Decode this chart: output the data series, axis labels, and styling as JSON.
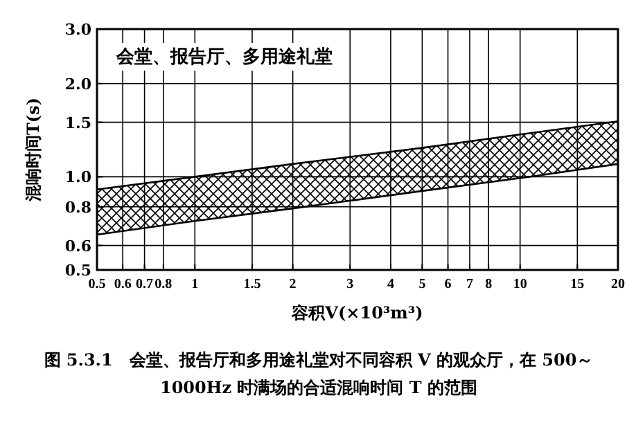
{
  "chart_data": {
    "type": "area",
    "xlabel": "容积V(×10³m³)",
    "ylabel": "混响时间T(s)",
    "annotations": [
      "会堂、报告厅、多用途礼堂",
      "图 5.3.1　会堂、报告厅和多用途礼堂对不同容积 V 的观众厅，在 500～1000Hz 时满场的合适混响时间 T 的范围"
    ],
    "x": [
      0.5,
      1,
      2,
      5,
      10,
      20
    ],
    "series": [
      {
        "type": "line",
        "color": "#000000",
        "values": [
          0.65,
          0.72,
          0.79,
          0.9,
          0.99,
          1.1
        ]
      },
      {
        "color": "#000000",
        "values": [
          0.91,
          1.0,
          1.1,
          1.24,
          1.37,
          1.51
        ]
      }
    ],
    "log": "xy",
    "xlim": [
      0.5,
      20
    ],
    "ylim": [
      0.5,
      3
    ],
    "xticks": [
      0.5,
      0.6,
      0.7,
      0.8,
      1,
      1.5,
      2,
      3,
      4,
      5,
      6,
      7,
      8,
      10,
      15,
      20
    ],
    "yticks": [
      0.5,
      0.6,
      0.8,
      {
        "value": 1,
        "label": "1.0"
      },
      1.5,
      {
        "value": 2,
        "label": "2.0"
      },
      {
        "value": 3,
        "label": "3.0"
      }
    ],
    "grid": true
  }
}
